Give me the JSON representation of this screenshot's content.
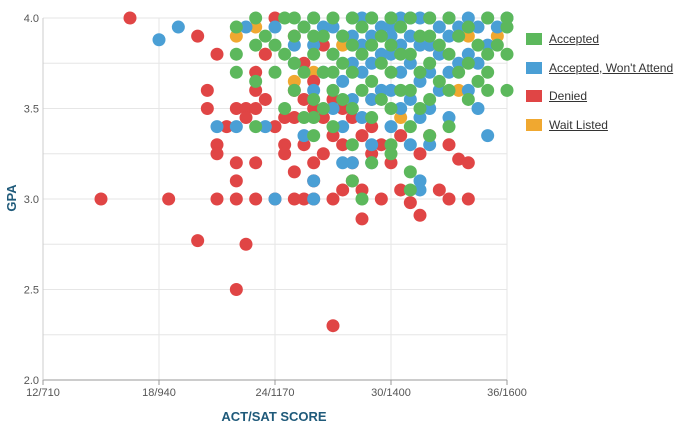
{
  "chart_data": {
    "type": "scatter",
    "title": "",
    "xlabel": "ACT/SAT SCORE",
    "ylabel": "GPA",
    "x_ticks": [
      "12/710",
      "18/940",
      "24/1170",
      "30/1400",
      "36/1600"
    ],
    "x_tick_values": [
      12,
      18,
      24,
      30,
      36
    ],
    "xlim": [
      12,
      36
    ],
    "y_ticks": [
      "2.0",
      "2.5",
      "3.0",
      "3.5",
      "4.0"
    ],
    "y_tick_values": [
      2.0,
      2.5,
      3.0,
      3.5,
      4.0
    ],
    "ylim": [
      2.0,
      4.0
    ],
    "grid": true,
    "legend_position": "right",
    "series": [
      {
        "name": "Accepted",
        "color": "#5cb85c",
        "points": [
          [
            22,
            3.7
          ],
          [
            22,
            3.8
          ],
          [
            22,
            3.95
          ],
          [
            23,
            3.4
          ],
          [
            23,
            3.65
          ],
          [
            23,
            3.85
          ],
          [
            23,
            4.0
          ],
          [
            23.5,
            3.9
          ],
          [
            24,
            3.7
          ],
          [
            24,
            3.85
          ],
          [
            24.5,
            3.5
          ],
          [
            24.5,
            3.8
          ],
          [
            24.5,
            4.0
          ],
          [
            25,
            3.6
          ],
          [
            25,
            3.75
          ],
          [
            25,
            3.9
          ],
          [
            25,
            4.0
          ],
          [
            25.5,
            3.45
          ],
          [
            25.5,
            3.7
          ],
          [
            25.5,
            3.95
          ],
          [
            26,
            3.35
          ],
          [
            26,
            3.55
          ],
          [
            26,
            3.8
          ],
          [
            26,
            3.9
          ],
          [
            26,
            4.0
          ],
          [
            26.5,
            3.5
          ],
          [
            26.5,
            3.7
          ],
          [
            26.5,
            3.9
          ],
          [
            27,
            3.4
          ],
          [
            27,
            3.6
          ],
          [
            27,
            3.8
          ],
          [
            27,
            4.0
          ],
          [
            27.5,
            3.55
          ],
          [
            27.5,
            3.75
          ],
          [
            27.5,
            3.9
          ],
          [
            28,
            3.1
          ],
          [
            28,
            3.3
          ],
          [
            28,
            3.5
          ],
          [
            28,
            3.7
          ],
          [
            28,
            3.85
          ],
          [
            28,
            4.0
          ],
          [
            28.5,
            3.6
          ],
          [
            28.5,
            3.8
          ],
          [
            28.5,
            3.95
          ],
          [
            29,
            3.2
          ],
          [
            29,
            3.45
          ],
          [
            29,
            3.65
          ],
          [
            29,
            3.85
          ],
          [
            29,
            4.0
          ],
          [
            29.5,
            3.55
          ],
          [
            29.5,
            3.75
          ],
          [
            29.5,
            3.9
          ],
          [
            30,
            3.3
          ],
          [
            30,
            3.5
          ],
          [
            30,
            3.7
          ],
          [
            30,
            3.85
          ],
          [
            30,
            4.0
          ],
          [
            30.5,
            3.6
          ],
          [
            30.5,
            3.8
          ],
          [
            30.5,
            3.95
          ],
          [
            31,
            3.15
          ],
          [
            31,
            3.4
          ],
          [
            31,
            3.6
          ],
          [
            31,
            3.8
          ],
          [
            31,
            4.0
          ],
          [
            31.5,
            3.5
          ],
          [
            31.5,
            3.7
          ],
          [
            31.5,
            3.9
          ],
          [
            32,
            3.35
          ],
          [
            32,
            3.55
          ],
          [
            32,
            3.75
          ],
          [
            32,
            3.9
          ],
          [
            32,
            4.0
          ],
          [
            32.5,
            3.65
          ],
          [
            32.5,
            3.85
          ],
          [
            33,
            3.4
          ],
          [
            33,
            3.6
          ],
          [
            33,
            3.8
          ],
          [
            33,
            4.0
          ],
          [
            33.5,
            3.7
          ],
          [
            33.5,
            3.9
          ],
          [
            34,
            3.55
          ],
          [
            34,
            3.75
          ],
          [
            34,
            3.95
          ],
          [
            34.5,
            3.65
          ],
          [
            34.5,
            3.85
          ],
          [
            35,
            3.6
          ],
          [
            35,
            3.8
          ],
          [
            35,
            4.0
          ],
          [
            35.5,
            3.85
          ],
          [
            36,
            3.6
          ],
          [
            36,
            3.8
          ],
          [
            36,
            4.0
          ],
          [
            31,
            3.05
          ],
          [
            30,
            3.25
          ],
          [
            28.5,
            3.0
          ],
          [
            35,
            3.7
          ],
          [
            36,
            3.95
          ],
          [
            26,
            3.45
          ],
          [
            27,
            3.7
          ]
        ]
      },
      {
        "name": "Accepted, Won't Attend",
        "color": "#4a9fd5",
        "points": [
          [
            18,
            3.88
          ],
          [
            19,
            3.95
          ],
          [
            21,
            3.4
          ],
          [
            22,
            3.4
          ],
          [
            22.5,
            3.95
          ],
          [
            23.5,
            3.4
          ],
          [
            24,
            3.0
          ],
          [
            25,
            3.75
          ],
          [
            25.5,
            3.35
          ],
          [
            25.5,
            3.95
          ],
          [
            26,
            3.1
          ],
          [
            26,
            3.6
          ],
          [
            26,
            3.85
          ],
          [
            26,
            4.0
          ],
          [
            26.5,
            3.7
          ],
          [
            26.5,
            3.95
          ],
          [
            27,
            3.5
          ],
          [
            27,
            3.8
          ],
          [
            27,
            3.95
          ],
          [
            27.5,
            3.4
          ],
          [
            27.5,
            3.65
          ],
          [
            27.5,
            3.9
          ],
          [
            28,
            3.2
          ],
          [
            28,
            3.55
          ],
          [
            28,
            3.75
          ],
          [
            28,
            3.9
          ],
          [
            28,
            4.0
          ],
          [
            28.5,
            3.45
          ],
          [
            28.5,
            3.7
          ],
          [
            28.5,
            3.85
          ],
          [
            28.5,
            4.0
          ],
          [
            29,
            3.3
          ],
          [
            29,
            3.55
          ],
          [
            29,
            3.75
          ],
          [
            29,
            3.9
          ],
          [
            29,
            4.0
          ],
          [
            29.5,
            3.6
          ],
          [
            29.5,
            3.8
          ],
          [
            29.5,
            3.95
          ],
          [
            30,
            3.4
          ],
          [
            30,
            3.6
          ],
          [
            30,
            3.8
          ],
          [
            30,
            3.9
          ],
          [
            30,
            4.0
          ],
          [
            30.5,
            3.5
          ],
          [
            30.5,
            3.7
          ],
          [
            30.5,
            3.85
          ],
          [
            30.5,
            4.0
          ],
          [
            31,
            3.3
          ],
          [
            31,
            3.55
          ],
          [
            31,
            3.75
          ],
          [
            31,
            3.9
          ],
          [
            31,
            4.0
          ],
          [
            31.5,
            3.1
          ],
          [
            31.5,
            3.45
          ],
          [
            31.5,
            3.65
          ],
          [
            31.5,
            3.85
          ],
          [
            31.5,
            4.0
          ],
          [
            32,
            3.5
          ],
          [
            32,
            3.7
          ],
          [
            32,
            3.85
          ],
          [
            32,
            4.0
          ],
          [
            32.5,
            3.6
          ],
          [
            32.5,
            3.8
          ],
          [
            32.5,
            3.95
          ],
          [
            33,
            3.45
          ],
          [
            33,
            3.7
          ],
          [
            33,
            3.9
          ],
          [
            33,
            4.0
          ],
          [
            33.5,
            3.75
          ],
          [
            33.5,
            3.95
          ],
          [
            34,
            3.6
          ],
          [
            34,
            3.8
          ],
          [
            34,
            4.0
          ],
          [
            34.5,
            3.5
          ],
          [
            34.5,
            3.75
          ],
          [
            34.5,
            3.95
          ],
          [
            35,
            3.85
          ],
          [
            35,
            4.0
          ],
          [
            35.5,
            3.95
          ],
          [
            36,
            4.0
          ],
          [
            31.5,
            3.05
          ],
          [
            29,
            3.2
          ],
          [
            35,
            3.35
          ],
          [
            26,
            3.0
          ],
          [
            27.5,
            3.2
          ],
          [
            24,
            3.95
          ],
          [
            25,
            3.85
          ],
          [
            32,
            3.3
          ],
          [
            30,
            3.95
          ]
        ]
      },
      {
        "name": "Denied",
        "color": "#e04545",
        "points": [
          [
            15,
            3.0
          ],
          [
            16.5,
            4.0
          ],
          [
            18.5,
            3.0
          ],
          [
            20,
            3.9
          ],
          [
            20,
            2.77
          ],
          [
            20.5,
            3.6
          ],
          [
            20.5,
            3.5
          ],
          [
            21,
            3.8
          ],
          [
            21,
            3.3
          ],
          [
            21,
            3.25
          ],
          [
            21,
            3.0
          ],
          [
            22,
            3.5
          ],
          [
            22,
            3.2
          ],
          [
            22,
            3.1
          ],
          [
            22,
            3.0
          ],
          [
            22,
            2.5
          ],
          [
            22.5,
            3.5
          ],
          [
            22.5,
            2.75
          ],
          [
            23,
            3.7
          ],
          [
            23,
            3.6
          ],
          [
            23,
            3.5
          ],
          [
            23,
            3.0
          ],
          [
            23.5,
            3.8
          ],
          [
            23.5,
            3.55
          ],
          [
            24,
            4.0
          ],
          [
            24,
            3.4
          ],
          [
            24,
            3.0
          ],
          [
            24.5,
            3.3
          ],
          [
            24.5,
            3.25
          ],
          [
            25,
            3.9
          ],
          [
            25,
            3.6
          ],
          [
            25,
            3.45
          ],
          [
            25,
            3.0
          ],
          [
            25.5,
            3.75
          ],
          [
            25.5,
            3.55
          ],
          [
            25.5,
            3.3
          ],
          [
            25.5,
            3.0
          ],
          [
            26,
            3.65
          ],
          [
            26,
            3.5
          ],
          [
            26,
            3.2
          ],
          [
            26,
            3.1
          ],
          [
            26,
            3.0
          ],
          [
            26.5,
            3.45
          ],
          [
            26.5,
            3.25
          ],
          [
            27,
            3.55
          ],
          [
            27,
            3.35
          ],
          [
            27,
            3.0
          ],
          [
            27,
            2.3
          ],
          [
            27.5,
            3.3
          ],
          [
            27.5,
            3.05
          ],
          [
            28,
            3.45
          ],
          [
            28,
            3.2
          ],
          [
            28,
            3.1
          ],
          [
            28.5,
            3.35
          ],
          [
            28.5,
            3.05
          ],
          [
            28.5,
            2.89
          ],
          [
            29,
            3.4
          ],
          [
            29,
            3.25
          ],
          [
            29.5,
            3.3
          ],
          [
            30,
            3.2
          ],
          [
            30.5,
            3.35
          ],
          [
            30.5,
            3.05
          ],
          [
            31,
            2.98
          ],
          [
            31.5,
            3.25
          ],
          [
            31.5,
            2.91
          ],
          [
            32,
            3.35
          ],
          [
            32.5,
            3.05
          ],
          [
            33,
            3.3
          ],
          [
            33,
            3.0
          ],
          [
            33.5,
            3.22
          ],
          [
            34,
            3.2
          ],
          [
            34,
            3.0
          ],
          [
            22.5,
            3.45
          ],
          [
            21.5,
            3.4
          ],
          [
            24.5,
            3.45
          ],
          [
            26.5,
            3.85
          ],
          [
            23,
            3.2
          ],
          [
            25,
            3.15
          ],
          [
            29.5,
            3.0
          ],
          [
            27.5,
            3.5
          ]
        ]
      },
      {
        "name": "Wait Listed",
        "color": "#f0a830",
        "points": [
          [
            22,
            3.9
          ],
          [
            23,
            3.95
          ],
          [
            23.5,
            3.8
          ],
          [
            25,
            3.65
          ],
          [
            26,
            3.7
          ],
          [
            27.5,
            3.85
          ],
          [
            29,
            3.55
          ],
          [
            30.5,
            3.45
          ],
          [
            32,
            3.85
          ],
          [
            33.5,
            3.6
          ],
          [
            34,
            3.9
          ],
          [
            35.5,
            3.9
          ]
        ]
      }
    ]
  }
}
